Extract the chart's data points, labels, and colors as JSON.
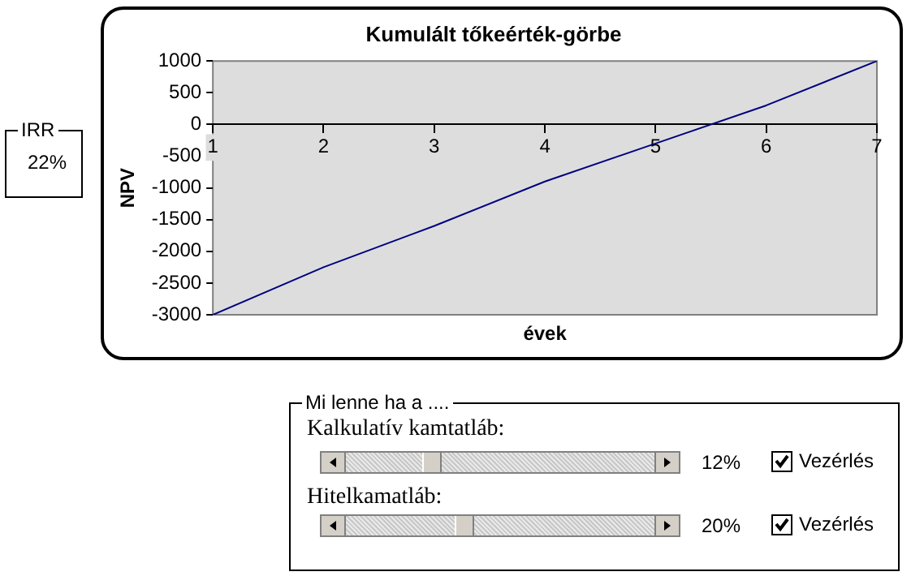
{
  "chart_data": {
    "type": "line",
    "title": "Kumulált tőkeérték-görbe",
    "xlabel": "évek",
    "ylabel": "NPV",
    "x": [
      1,
      2,
      3,
      4,
      5,
      6,
      7
    ],
    "series": [
      {
        "color": "#000080",
        "values": [
          -3000,
          -2250,
          -1600,
          -900,
          -300,
          300,
          1000
        ]
      }
    ],
    "xlim": [
      1,
      7
    ],
    "xticks": [
      1,
      2,
      3,
      4,
      5,
      6,
      7
    ],
    "ylim": [
      -3000,
      1000
    ],
    "yticks": [
      -3000,
      -2500,
      -2000,
      -1500,
      -1000,
      -500,
      0,
      500,
      1000
    ],
    "grid": false,
    "legend": false,
    "marker": "none",
    "line_style": "solid",
    "annotations": [
      "IRR",
      "22%",
      "Mi lenne ha a ....",
      "Kalkulatív kamtatláb:",
      "12%",
      "Vezérlés",
      "Hitelkamatláb:",
      "20%",
      "Vezérlés"
    ]
  }
}
